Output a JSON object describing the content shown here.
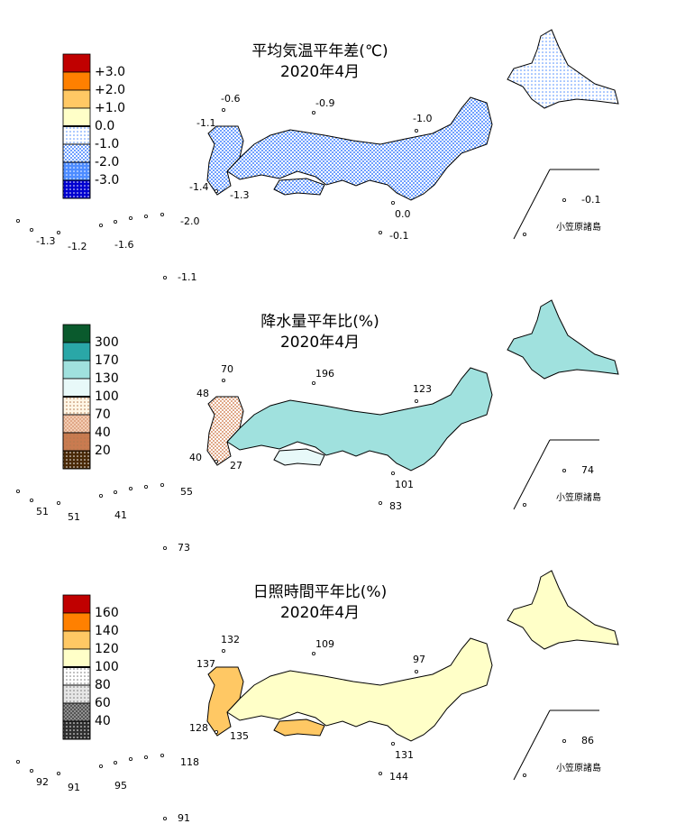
{
  "maps": [
    {
      "title": "平均気温平年差(℃)",
      "subtitle": "2020年4月",
      "legend": {
        "labels": [
          "+3.0",
          "+2.0",
          "+1.0",
          "0.0",
          "-1.0",
          "-2.0",
          "-3.0"
        ],
        "colors": [
          "#c00000",
          "#ff8000",
          "#ffc864",
          "#ffffc8",
          "#ffffff",
          "#ffffff",
          "#4d8cff",
          "#0000d0"
        ],
        "patterns": [
          null,
          null,
          null,
          null,
          "dot-blue",
          "check-blue",
          "dot-white",
          "dot-white"
        ]
      },
      "stations": [
        "-0.6",
        "-0.9",
        "-1.1",
        "-1.0",
        "-1.4",
        "-1.3",
        "0.0",
        "-0.1",
        "-2.0",
        "-1.3",
        "-1.2",
        "-1.6",
        "-1.1",
        "-0.1"
      ],
      "region_label": "小笠原諸島"
    },
    {
      "title": "降水量平年比(%)",
      "subtitle": "2020年4月",
      "legend": {
        "labels": [
          "300",
          "170",
          "130",
          "100",
          "70",
          "40",
          "20"
        ],
        "colors": [
          "#0a5a2d",
          "#2aa7a7",
          "#a0e1de",
          "#e8f9f9",
          "#fff6e6",
          "#f3cdb4",
          "#c97b50",
          "#4a2a08"
        ],
        "patterns": [
          null,
          null,
          null,
          null,
          "dot-brown",
          "check-brown",
          "dot-brown",
          "dot-white"
        ]
      },
      "stations": [
        "70",
        "196",
        "48",
        "123",
        "40",
        "27",
        "101",
        "83",
        "55",
        "51",
        "51",
        "41",
        "73",
        "74"
      ],
      "region_label": "小笠原諸島"
    },
    {
      "title": "日照時間平年比(%)",
      "subtitle": "2020年4月",
      "legend": {
        "labels": [
          "160",
          "140",
          "120",
          "100",
          "80",
          "60",
          "40"
        ],
        "colors": [
          "#c00000",
          "#ff8000",
          "#ffc864",
          "#ffffc8",
          "#ffffff",
          "#e6e6e6",
          "#909090",
          "#303030"
        ],
        "patterns": [
          null,
          null,
          null,
          null,
          "dot-gray",
          "dot-gray",
          "check-gray",
          "dot-white"
        ]
      },
      "stations": [
        "132",
        "109",
        "137",
        "97",
        "128",
        "135",
        "131",
        "144",
        "118",
        "92",
        "91",
        "95",
        "91",
        "86"
      ],
      "region_label": "小笠原諸島"
    }
  ]
}
